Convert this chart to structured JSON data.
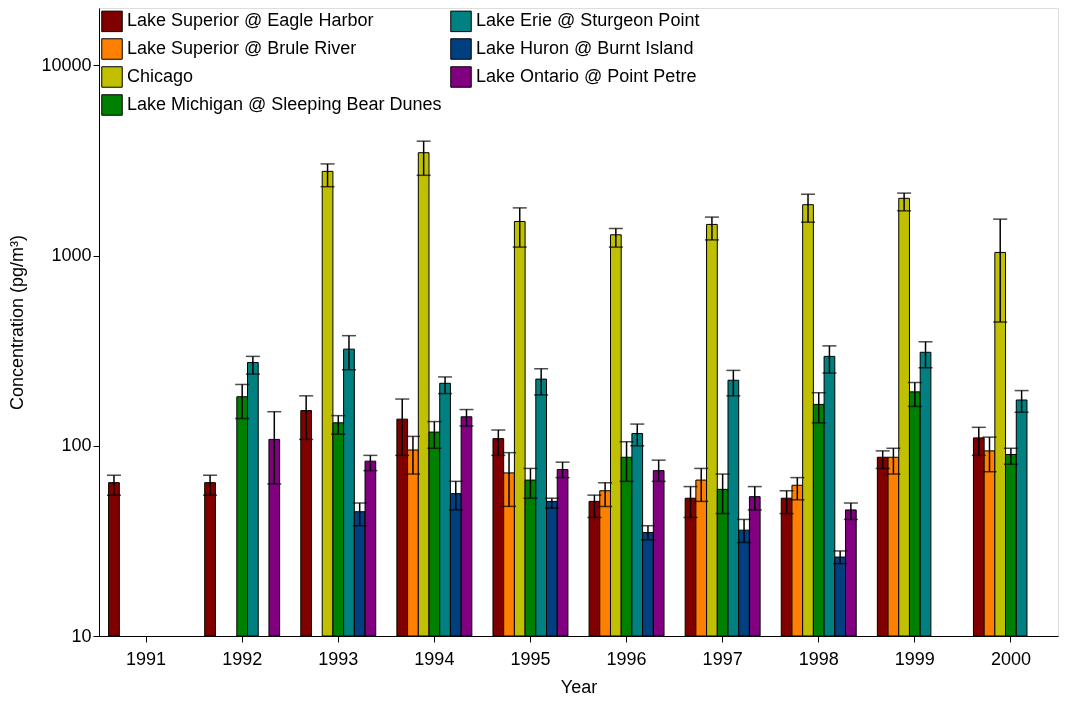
{
  "chart_data": {
    "type": "bar",
    "xlabel": "Year",
    "ylabel": "Concentration (pg/m³)",
    "log": true,
    "ylim": [
      10,
      20000
    ],
    "yticks": [
      10,
      100,
      1000,
      10000
    ],
    "grid": false,
    "legend": "top left",
    "categories": [
      "1991",
      "1992",
      "1993",
      "1994",
      "1995",
      "1996",
      "1997",
      "1998",
      "1999",
      "2000"
    ],
    "series": [
      {
        "name": "Lake Superior @ Eagle Harbor",
        "color": "#800000",
        "values": [
          64,
          64,
          153,
          138,
          109,
          51,
          53,
          53,
          87,
          110
        ],
        "errors": [
          [
            55,
            70
          ],
          [
            55,
            70
          ],
          [
            108,
            183
          ],
          [
            89,
            176
          ],
          [
            89,
            121
          ],
          [
            42,
            55
          ],
          [
            42,
            61
          ],
          [
            44,
            58
          ],
          [
            76,
            94
          ],
          [
            89,
            125
          ]
        ]
      },
      {
        "name": "Lake Superior @ Brule River",
        "color": "#ff8000",
        "values": [
          null,
          null,
          null,
          95,
          72,
          58,
          66,
          62,
          87,
          94
        ],
        "errors": [
          null,
          null,
          null,
          [
            71,
            112
          ],
          [
            48,
            92
          ],
          [
            48,
            64
          ],
          [
            51,
            76
          ],
          [
            52,
            68
          ],
          [
            71,
            97
          ],
          [
            73,
            111
          ]
        ]
      },
      {
        "name": "Chicago",
        "color": "#c0c000",
        "values": [
          null,
          null,
          2770,
          3470,
          1510,
          1285,
          1457,
          1850,
          1998,
          1038
        ],
        "errors": [
          null,
          null,
          [
            2300,
            3030
          ],
          [
            2640,
            3990
          ],
          [
            1107,
            1780
          ],
          [
            1107,
            1387
          ],
          [
            1208,
            1592
          ],
          [
            1497,
            2100
          ],
          [
            1718,
            2128
          ],
          [
            447,
            1553
          ]
        ]
      },
      {
        "name": "Lake Michigan @ Sleeping Bear Dunes",
        "color": "#008000",
        "values": [
          null,
          181,
          132,
          118,
          66,
          87,
          59,
          165,
          192,
          90
        ],
        "errors": [
          null,
          [
            139,
            210
          ],
          [
            115,
            144
          ],
          [
            97,
            134
          ],
          [
            53,
            76
          ],
          [
            65,
            105
          ],
          [
            44,
            71
          ],
          [
            132,
            190
          ],
          [
            161,
            215
          ],
          [
            80,
            97
          ]
        ]
      },
      {
        "name": "Lake Erie @ Sturgeon Point",
        "color": "#008080",
        "values": [
          null,
          274,
          322,
          213,
          224,
          116,
          221,
          295,
          310,
          174
        ],
        "errors": [
          null,
          [
            238,
            295
          ],
          [
            251,
            379
          ],
          [
            188,
            230
          ],
          [
            185,
            254
          ],
          [
            100,
            130
          ],
          [
            183,
            249
          ],
          [
            241,
            335
          ],
          [
            257,
            352
          ],
          [
            150,
            195
          ]
        ]
      },
      {
        "name": "Lake Huron @ Burnt Island",
        "color": "#004080",
        "values": [
          null,
          null,
          45,
          56,
          51,
          35,
          36,
          26,
          null,
          null
        ],
        "errors": [
          null,
          null,
          [
            38,
            50
          ],
          [
            46,
            65
          ],
          [
            47,
            53
          ],
          [
            32,
            38
          ],
          [
            31,
            41
          ],
          [
            24,
            28
          ],
          null,
          null
        ]
      },
      {
        "name": "Lake Ontario @ Point Petre",
        "color": "#800080",
        "values": [
          null,
          108,
          83,
          142,
          75,
          74,
          54,
          46,
          null,
          null
        ],
        "errors": [
          null,
          [
            63,
            151
          ],
          [
            74,
            89
          ],
          [
            127,
            155
          ],
          [
            68,
            82
          ],
          [
            65,
            84
          ],
          [
            46,
            61
          ],
          [
            41,
            50
          ],
          null,
          null
        ]
      }
    ]
  }
}
